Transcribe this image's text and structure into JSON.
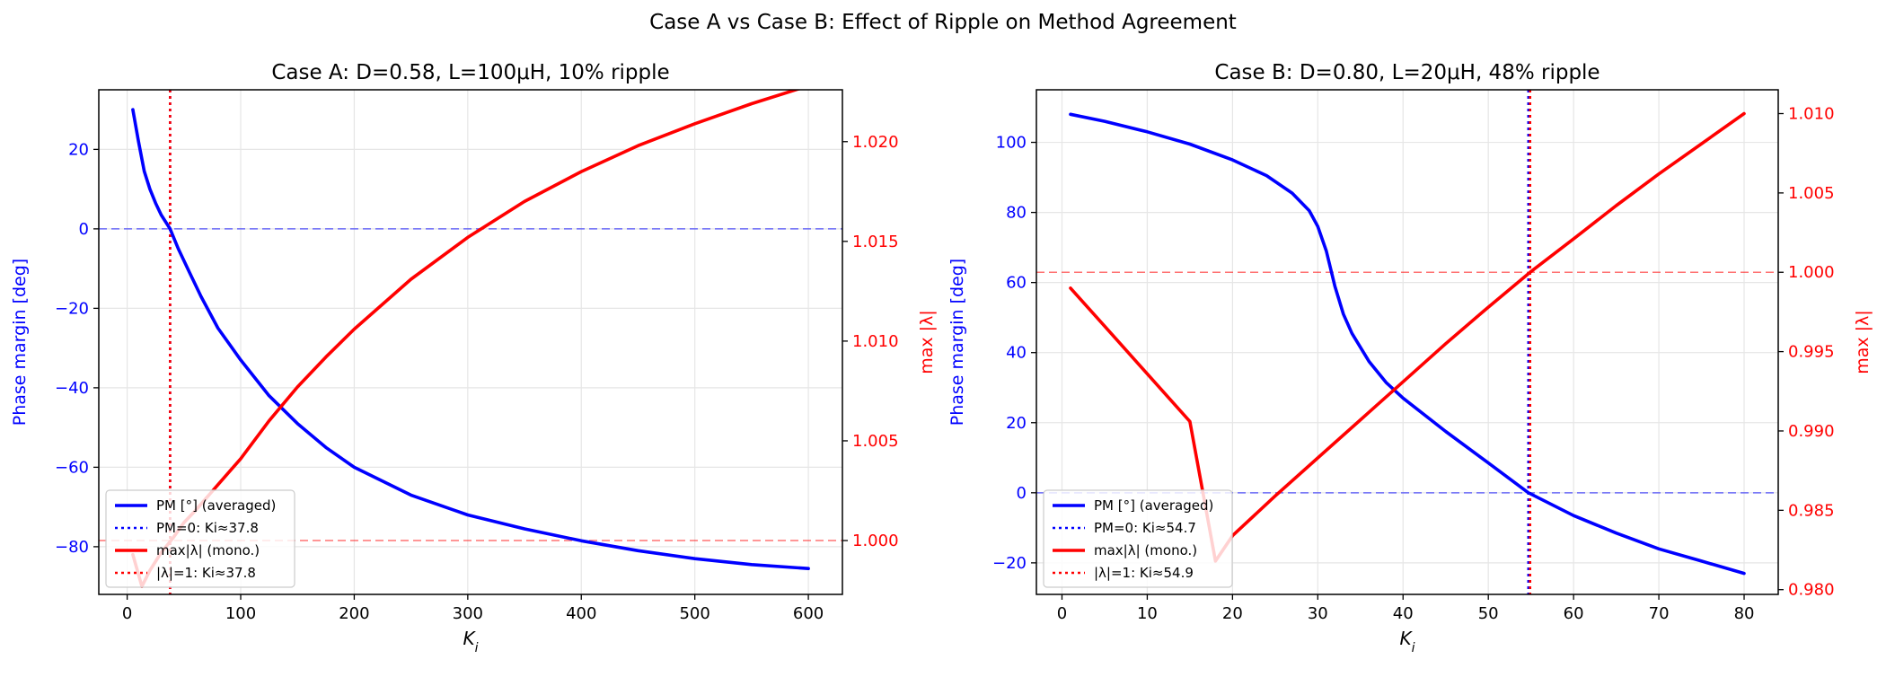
{
  "figure": {
    "suptitle": "Case A vs Case B: Effect of Ripple on Method Agreement"
  },
  "chart_data": [
    {
      "type": "line",
      "title": "Case A: D=0.58, L=100μH, 10% ripple",
      "xlabel": "K",
      "xlabel_sub": "i",
      "ylabel_left": "Phase margin [deg]",
      "ylabel_right": "max |λ|",
      "xlim": [
        -25,
        630
      ],
      "ylim_left": [
        -92,
        35
      ],
      "ylim_right": [
        0.9973,
        1.0226
      ],
      "xticks": [
        0,
        100,
        200,
        300,
        400,
        500,
        600
      ],
      "xtick_labels": [
        "0",
        "100",
        "200",
        "300",
        "400",
        "500",
        "600"
      ],
      "yticks_left": [
        20,
        0,
        -20,
        -40,
        -60,
        -80
      ],
      "ytick_labels_left": [
        "20",
        "0",
        "−20",
        "−40",
        "−60",
        "−80"
      ],
      "yticks_right": [
        1.0,
        1.005,
        1.01,
        1.015,
        1.02
      ],
      "ytick_labels_right": [
        "1.000",
        "1.005",
        "1.010",
        "1.015",
        "1.020"
      ],
      "grid": true,
      "legend_position": "lower-left",
      "series": [
        {
          "name": "PM [°] (averaged)",
          "axis": "left",
          "color": "#0000ff",
          "style": "solid",
          "x": [
            5,
            10,
            15,
            20,
            25,
            30,
            37.8,
            45,
            55,
            65,
            80,
            100,
            125,
            150,
            175,
            200,
            250,
            300,
            350,
            400,
            450,
            500,
            550,
            600
          ],
          "y": [
            30,
            22,
            14.5,
            10,
            6.5,
            3.5,
            0,
            -5,
            -11,
            -17,
            -25,
            -33,
            -42,
            -49,
            -55,
            -60,
            -67,
            -72,
            -75.5,
            -78.5,
            -81,
            -83,
            -84.5,
            -85.5
          ]
        },
        {
          "name": "max|λ| (mono.)",
          "axis": "right",
          "color": "#ff0000",
          "style": "solid",
          "x": [
            5,
            13,
            20,
            30,
            40,
            50,
            60,
            80,
            100,
            125,
            150,
            175,
            200,
            250,
            300,
            350,
            400,
            450,
            500,
            550,
            600
          ],
          "y": [
            0.9993,
            0.9977,
            0.9985,
            0.9994,
            1.0001,
            1.0009,
            1.0015,
            1.0028,
            1.0041,
            1.006,
            1.0077,
            1.0092,
            1.0106,
            1.0131,
            1.0152,
            1.017,
            1.0185,
            1.0198,
            1.0209,
            1.0219,
            1.0228
          ]
        }
      ],
      "reference_lines": [
        {
          "name": "PM=0: Ki≈37.8",
          "orientation": "vertical",
          "value": 37.8,
          "color": "#0000ff",
          "style": "dotted"
        },
        {
          "name": "|λ|=1: Ki≈37.8",
          "orientation": "vertical",
          "value": 37.8,
          "color": "#ff0000",
          "style": "dotted"
        },
        {
          "orientation": "horizontal",
          "axis": "left",
          "value": 0,
          "color": "#0000ff",
          "style": "dashed"
        },
        {
          "orientation": "horizontal",
          "axis": "right",
          "value": 1.0,
          "color": "#ff0000",
          "style": "dashed"
        }
      ]
    },
    {
      "type": "line",
      "title": "Case B: D=0.80, L=20μH, 48% ripple",
      "xlabel": "K",
      "xlabel_sub": "i",
      "ylabel_left": "Phase margin [deg]",
      "ylabel_right": "max |λ|",
      "xlim": [
        -3,
        84
      ],
      "ylim_left": [
        -29,
        115
      ],
      "ylim_right": [
        0.9797,
        1.0115
      ],
      "xticks": [
        0,
        10,
        20,
        30,
        40,
        50,
        60,
        70,
        80
      ],
      "xtick_labels": [
        "0",
        "10",
        "20",
        "30",
        "40",
        "50",
        "60",
        "70",
        "80"
      ],
      "yticks_left": [
        100,
        80,
        60,
        40,
        20,
        0,
        -20
      ],
      "ytick_labels_left": [
        "100",
        "80",
        "60",
        "40",
        "20",
        "0",
        "−20"
      ],
      "yticks_right": [
        0.98,
        0.985,
        0.99,
        0.995,
        1.0,
        1.005,
        1.01
      ],
      "ytick_labels_right": [
        "0.980",
        "0.985",
        "0.990",
        "0.995",
        "1.000",
        "1.005",
        "1.010"
      ],
      "grid": true,
      "legend_position": "lower-left",
      "series": [
        {
          "name": "PM [°] (averaged)",
          "axis": "left",
          "color": "#0000ff",
          "style": "solid",
          "x": [
            1,
            5,
            10,
            15,
            20,
            24,
            27,
            29,
            30,
            31,
            32,
            33,
            34,
            36,
            38,
            40,
            45,
            50,
            54.7,
            60,
            65,
            70,
            75,
            80
          ],
          "y": [
            108,
            106,
            103,
            99.5,
            95,
            90.5,
            85.5,
            80.5,
            76,
            69,
            59,
            51,
            45.5,
            37.5,
            31.5,
            27,
            17.5,
            8.5,
            0,
            -6.5,
            -11.5,
            -16,
            -19.5,
            -23
          ]
        },
        {
          "name": "max|λ| (mono.)",
          "axis": "right",
          "color": "#ff0000",
          "style": "solid",
          "x": [
            1,
            5,
            10,
            15,
            18,
            20,
            25,
            30,
            35,
            40,
            45,
            50,
            54.9,
            60,
            65,
            70,
            75,
            80
          ],
          "y": [
            0.999,
            0.9966,
            0.9936,
            0.9906,
            0.9818,
            0.9834,
            0.9859,
            0.9883,
            0.9907,
            0.9931,
            0.9955,
            0.9978,
            1.0,
            1.0021,
            1.0042,
            1.0062,
            1.0081,
            1.01
          ]
        }
      ],
      "reference_lines": [
        {
          "name": "PM=0: Ki≈54.7",
          "orientation": "vertical",
          "value": 54.7,
          "color": "#0000ff",
          "style": "dotted"
        },
        {
          "name": "|λ|=1: Ki≈54.9",
          "orientation": "vertical",
          "value": 54.9,
          "color": "#ff0000",
          "style": "dotted"
        },
        {
          "orientation": "horizontal",
          "axis": "left",
          "value": 0,
          "color": "#0000ff",
          "style": "dashed"
        },
        {
          "orientation": "horizontal",
          "axis": "right",
          "value": 1.0,
          "color": "#ff0000",
          "style": "dashed"
        }
      ]
    }
  ]
}
